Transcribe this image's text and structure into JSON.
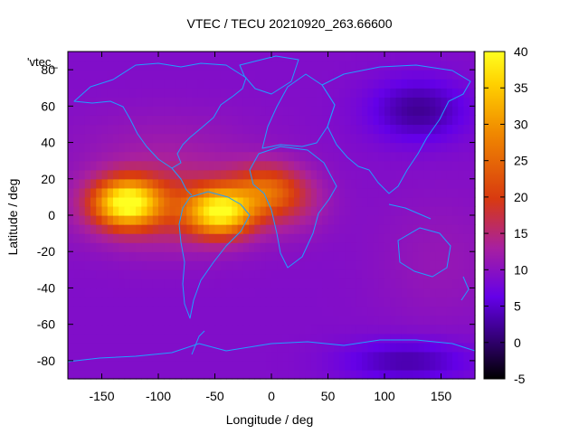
{
  "chart_data": {
    "type": "heatmap",
    "title": "VTEC / TECU 20210920_263.66600",
    "xlabel": "Longitude / deg",
    "ylabel": "Latitude / deg",
    "xlim": [
      -180,
      180
    ],
    "ylim": [
      -90,
      90
    ],
    "xticks": [
      -150,
      -100,
      -50,
      0,
      50,
      100,
      150
    ],
    "yticks": [
      -80,
      -60,
      -40,
      -20,
      0,
      20,
      40,
      60,
      80
    ],
    "colorbar": {
      "range": [
        -5,
        40
      ],
      "ticks": [
        -5,
        0,
        5,
        10,
        15,
        20,
        25,
        30,
        35,
        40
      ]
    },
    "legend": {
      "label": "'vtec_",
      "placement": "top-left"
    },
    "overlay": "coastlines",
    "colors": {
      "coastline": "#1fa0ff",
      "axis": "#000000"
    },
    "field": {
      "background_tecu": 9,
      "features": [
        {
          "lon": -128,
          "lat": 7,
          "sig_lon": 20,
          "sig_lat": 9,
          "amp": 27
        },
        {
          "lon": -45,
          "lat": 2,
          "sig_lon": 20,
          "sig_lat": 9,
          "amp": 25
        },
        {
          "lon": -90,
          "lat": 6,
          "sig_lon": 55,
          "sig_lat": 16,
          "amp": 9
        },
        {
          "lon": -5,
          "lat": 14,
          "sig_lon": 22,
          "sig_lat": 10,
          "amp": 12
        },
        {
          "lon": 20,
          "lat": 8,
          "sig_lon": 22,
          "sig_lat": 12,
          "amp": 4
        },
        {
          "lon": -95,
          "lat": 40,
          "sig_lon": 60,
          "sig_lat": 15,
          "amp": 2
        },
        {
          "lon": 130,
          "lat": 58,
          "sig_lon": 30,
          "sig_lat": 12,
          "amp": -7
        },
        {
          "lon": 120,
          "lat": -80,
          "sig_lon": 40,
          "sig_lat": 8,
          "amp": -6
        },
        {
          "lon": 150,
          "lat": -25,
          "sig_lon": 40,
          "sig_lat": 25,
          "amp": 2
        }
      ]
    }
  }
}
